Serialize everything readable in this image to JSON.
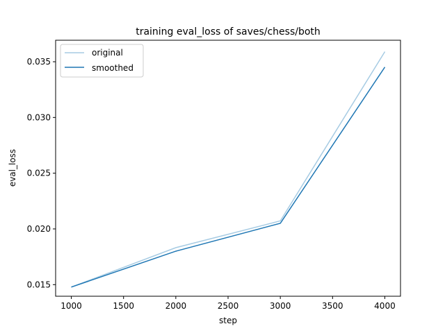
{
  "chart_data": {
    "type": "line",
    "title": "training eval_loss of saves/chess/both",
    "xlabel": "step",
    "ylabel": "eval_loss",
    "x": [
      1000,
      2000,
      3000,
      4000
    ],
    "series": [
      {
        "name": "original",
        "color": "#a6cbe3",
        "values": [
          0.01478,
          0.01832,
          0.02072,
          0.0359
        ]
      },
      {
        "name": "smoothed",
        "color": "#1f77b4",
        "values": [
          0.01478,
          0.018,
          0.02051,
          0.03452
        ]
      }
    ],
    "xlim": [
      850,
      4150
    ],
    "ylim": [
      0.01396,
      0.03693
    ],
    "xticks": [
      1000,
      1500,
      2000,
      2500,
      3000,
      3500,
      4000
    ],
    "yticks": [
      0.015,
      0.02,
      0.025,
      0.03,
      0.035
    ],
    "ytick_labels": [
      "0.015",
      "0.020",
      "0.025",
      "0.030",
      "0.035"
    ],
    "grid": false,
    "legend_position": "upper left"
  }
}
